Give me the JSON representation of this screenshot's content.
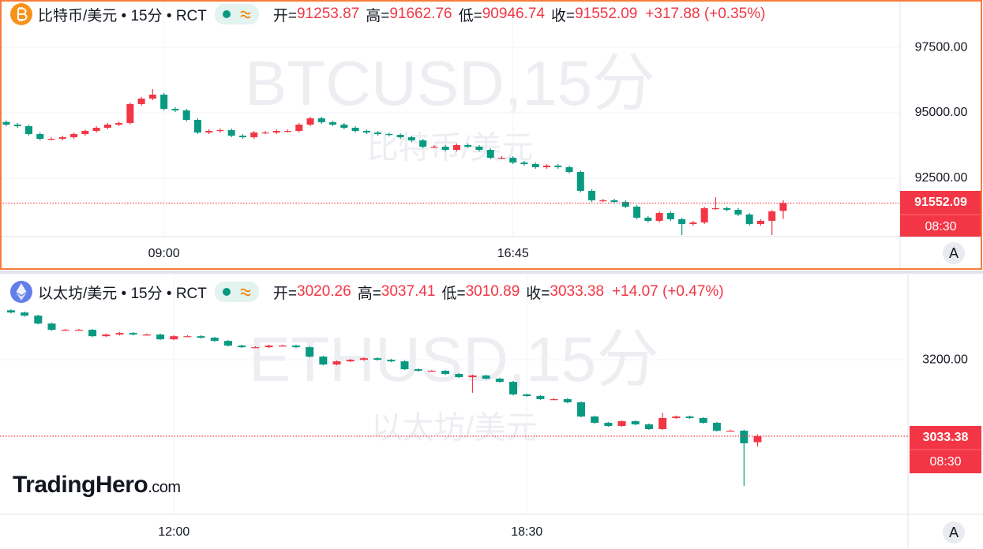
{
  "logo": "TradingHero",
  "logo_suffix": ".com",
  "chart_data": [
    {
      "type": "candlestick",
      "title": "比特币/美元 • 15分 • RCT",
      "ohlc_labels": [
        "开=",
        "高=",
        "低=",
        "收="
      ],
      "change": "+317.88 (+0.35%)",
      "watermark": "BTCUSD,15分",
      "watermark_subtitle": "比特币/美元",
      "countdown": "08:30",
      "scale_button": "A",
      "up_color": "#f23645",
      "down_color": "#089981",
      "grid": true,
      "xlim": [
        -0.56,
        79.38
      ],
      "xticks": [
        {
          "value": 14,
          "label": "09:00"
        },
        {
          "value": 45,
          "label": "16:45"
        }
      ],
      "ylim": [
        90270,
        99310
      ],
      "yticks": [
        {
          "value": 92500,
          "label": "92500.00"
        },
        {
          "value": 95000,
          "label": "95000.00"
        },
        {
          "value": 97500,
          "label": "97500.00"
        }
      ],
      "open": [
        94650,
        94549,
        94489,
        94188,
        94007,
        94007,
        94067,
        94188,
        94308,
        94429,
        94549,
        94610,
        95333,
        95544,
        95694,
        95152,
        95092,
        94730,
        94248,
        94308,
        94339,
        94128,
        94067,
        94248,
        94248,
        94308,
        94308,
        94549,
        94790,
        94640,
        94549,
        94429,
        94308,
        94248,
        94188,
        94158,
        94067,
        93947,
        93706,
        93706,
        93585,
        93766,
        93706,
        93585,
        93284,
        93284,
        93103,
        93043,
        92922,
        92983,
        92922,
        92742,
        92019,
        91657,
        91657,
        91597,
        91416,
        90994,
        90874,
        91175,
        90934,
        90753,
        90813,
        91356,
        91356,
        91295,
        91115,
        90753,
        90874,
        91253.87
      ],
      "high": [
        94710,
        94609,
        94549,
        94248,
        94067,
        94127,
        94248,
        94368,
        94489,
        94609,
        94670,
        95393,
        95604,
        95905,
        95754,
        95212,
        95152,
        94790,
        94368,
        94399,
        94399,
        94188,
        94308,
        94308,
        94368,
        94368,
        94609,
        94850,
        94850,
        94700,
        94609,
        94489,
        94368,
        94308,
        94248,
        94218,
        94127,
        94007,
        93766,
        93766,
        93826,
        93826,
        93766,
        93645,
        93344,
        93344,
        93163,
        93103,
        93043,
        93043,
        92982,
        92802,
        92079,
        91717,
        91717,
        91657,
        91476,
        91054,
        91235,
        91235,
        90994,
        90873,
        91416,
        91777,
        91416,
        91355,
        91175,
        90934,
        91295,
        91662.76
      ],
      "low": [
        94489,
        94429,
        94128,
        93947,
        93947,
        93947,
        94007,
        94128,
        94248,
        94369,
        94489,
        94550,
        95273,
        95484,
        95092,
        95032,
        94670,
        94188,
        94188,
        94248,
        94068,
        94007,
        94007,
        94188,
        94188,
        94248,
        94248,
        94489,
        94580,
        94489,
        94369,
        94248,
        94188,
        94128,
        94098,
        94007,
        93887,
        93646,
        93646,
        93525,
        93525,
        93646,
        93525,
        93224,
        93224,
        93043,
        92983,
        92862,
        92862,
        92862,
        92682,
        91959,
        91597,
        91597,
        91537,
        91356,
        90934,
        90814,
        90814,
        90874,
        90331,
        90693,
        90753,
        91296,
        91235,
        91055,
        90693,
        90693,
        90331,
        90946.74
      ],
      "close": [
        94549,
        94489,
        94188,
        94007,
        94007,
        94067,
        94188,
        94308,
        94429,
        94549,
        94610,
        95333,
        95544,
        95694,
        95152,
        95092,
        94730,
        94248,
        94308,
        94339,
        94128,
        94067,
        94248,
        94248,
        94308,
        94308,
        94549,
        94790,
        94640,
        94549,
        94429,
        94308,
        94248,
        94188,
        94158,
        94067,
        93947,
        93706,
        93706,
        93585,
        93766,
        93706,
        93585,
        93284,
        93284,
        93103,
        93043,
        92922,
        92983,
        92922,
        92742,
        92019,
        91657,
        91657,
        91597,
        91416,
        90994,
        90874,
        91175,
        90934,
        90753,
        90813,
        91356,
        91356,
        91295,
        91115,
        90753,
        90874,
        91235,
        91552.09
      ]
    },
    {
      "type": "candlestick",
      "title": "以太坊/美元 • 15分 • RCT",
      "ohlc_labels": [
        "开=",
        "高=",
        "低=",
        "收="
      ],
      "change": "+14.07 (+0.47%)",
      "watermark": "ETHUSD,15分",
      "watermark_subtitle": "以太坊/美元",
      "countdown": "08:30",
      "scale_button": "A",
      "up_color": "#f23645",
      "down_color": "#089981",
      "grid": true,
      "xlim": [
        -0.81,
        66.08
      ],
      "xticks": [
        {
          "value": 12,
          "label": "12:00"
        },
        {
          "value": 38,
          "label": "18:30"
        }
      ],
      "ylim": [
        2863,
        3386
      ],
      "yticks": [
        {
          "value": 3200,
          "label": "3200.00"
        }
      ],
      "open": [
        3308.0,
        3303.1,
        3296.2,
        3279.0,
        3265.3,
        3265.3,
        3265.3,
        3251.5,
        3255.0,
        3258.4,
        3255.0,
        3255.0,
        3244.7,
        3251.5,
        3251.5,
        3248.1,
        3241.2,
        3230.9,
        3227.5,
        3227.5,
        3230.9,
        3230.9,
        3227.5,
        3206.9,
        3189.7,
        3196.6,
        3200.0,
        3203.4,
        3200.0,
        3196.6,
        3179.4,
        3176.0,
        3176.0,
        3169.1,
        3162.2,
        3165.6,
        3158.8,
        3151.9,
        3124.4,
        3121.0,
        3114.1,
        3114.1,
        3107.2,
        3076.3,
        3062.6,
        3055.7,
        3066.0,
        3059.1,
        3048.8,
        3072.9,
        3076.3,
        3072.9,
        3062.6,
        3045.4,
        3045.4,
        3020.26
      ],
      "high": [
        3310.0,
        3305.1,
        3298.2,
        3281.0,
        3267.3,
        3267.3,
        3267.3,
        3257.0,
        3260.4,
        3260.4,
        3257.0,
        3257.0,
        3253.5,
        3253.5,
        3253.5,
        3250.1,
        3243.2,
        3232.9,
        3229.5,
        3232.9,
        3232.9,
        3232.9,
        3229.5,
        3208.9,
        3198.6,
        3202.0,
        3205.4,
        3205.4,
        3202.0,
        3198.6,
        3181.4,
        3178.0,
        3178.0,
        3171.1,
        3167.6,
        3167.6,
        3160.8,
        3153.9,
        3126.4,
        3123.0,
        3116.1,
        3116.1,
        3109.2,
        3078.3,
        3064.6,
        3068.0,
        3068.0,
        3061.1,
        3084.0,
        3078.3,
        3078.3,
        3074.9,
        3064.6,
        3047.4,
        3047.4,
        3037.41
      ],
      "low": [
        3301.1,
        3294.2,
        3277.0,
        3263.3,
        3263.3,
        3263.3,
        3249.5,
        3249.5,
        3253.0,
        3253.0,
        3253.0,
        3242.7,
        3242.7,
        3249.5,
        3246.1,
        3239.2,
        3228.9,
        3225.5,
        3225.5,
        3225.5,
        3228.9,
        3225.5,
        3204.9,
        3187.7,
        3187.7,
        3194.6,
        3198.0,
        3198.0,
        3194.6,
        3177.4,
        3174.0,
        3174.0,
        3167.1,
        3160.2,
        3128.0,
        3156.8,
        3149.9,
        3122.4,
        3119.0,
        3112.1,
        3112.1,
        3105.2,
        3074.3,
        3060.6,
        3053.7,
        3053.7,
        3057.1,
        3046.8,
        3046.8,
        3070.9,
        3070.9,
        3060.6,
        3043.4,
        3043.4,
        2925.2,
        3010.89
      ],
      "close": [
        3303.1,
        3296.2,
        3279.0,
        3265.3,
        3265.3,
        3265.3,
        3251.5,
        3255.0,
        3258.4,
        3255.0,
        3255.0,
        3244.7,
        3251.5,
        3251.5,
        3248.1,
        3241.2,
        3230.9,
        3227.5,
        3227.5,
        3230.9,
        3230.9,
        3227.5,
        3206.9,
        3189.7,
        3196.6,
        3200.0,
        3203.4,
        3200.0,
        3196.6,
        3179.4,
        3176.0,
        3176.0,
        3169.1,
        3162.2,
        3165.6,
        3158.8,
        3151.9,
        3124.4,
        3121.0,
        3114.1,
        3114.1,
        3107.2,
        3076.3,
        3062.6,
        3055.7,
        3066.0,
        3059.1,
        3048.8,
        3072.9,
        3076.3,
        3072.9,
        3062.6,
        3045.4,
        3045.4,
        3018.0,
        3033.38
      ]
    }
  ]
}
